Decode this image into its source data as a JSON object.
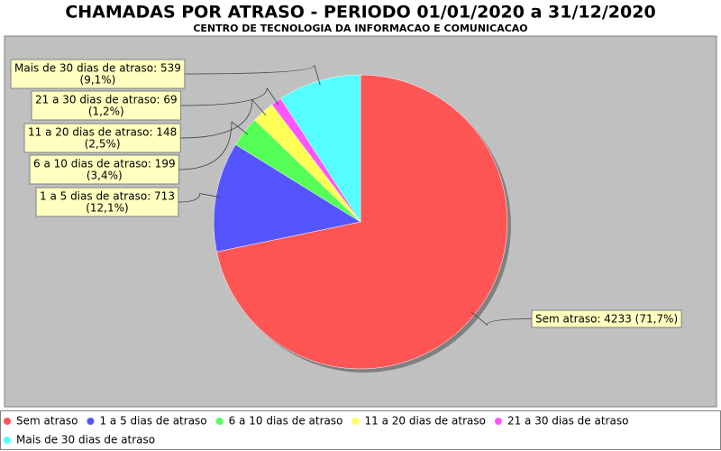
{
  "chart_data": {
    "type": "pie",
    "title": "CHAMADAS POR ATRASO - PERIODO 01/01/2020 a 31/12/2020",
    "subtitle": "CENTRO DE TECNOLOGIA DA INFORMACAO E COMUNICACAO",
    "categories": [
      "Sem atraso",
      "1 a 5 dias de atraso",
      "6 a 10 dias de atraso",
      "11 a 20 dias de atraso",
      "21 a 30 dias de atraso",
      "Mais de 30 dias de atraso"
    ],
    "values": [
      4233,
      713,
      199,
      148,
      69,
      539
    ],
    "value_labels": [
      [
        "Sem atraso: 4233 (71,7%)"
      ],
      [
        "1 a 5 dias de atraso: 713",
        "(12,1%)"
      ],
      [
        "6 a 10 dias de atraso: 199",
        "(3,4%)"
      ],
      [
        "11 a 20 dias de atraso: 148",
        "(2,5%)"
      ],
      [
        "21 a 30 dias de atraso: 69",
        "(1,2%)"
      ],
      [
        "Mais de 30 dias de atraso: 539",
        "(9,1%)"
      ]
    ],
    "colors": [
      "#ff5555",
      "#5555ff",
      "#55ff55",
      "#ffff55",
      "#ff55ff",
      "#55ffff"
    ],
    "legend": "bottom"
  }
}
